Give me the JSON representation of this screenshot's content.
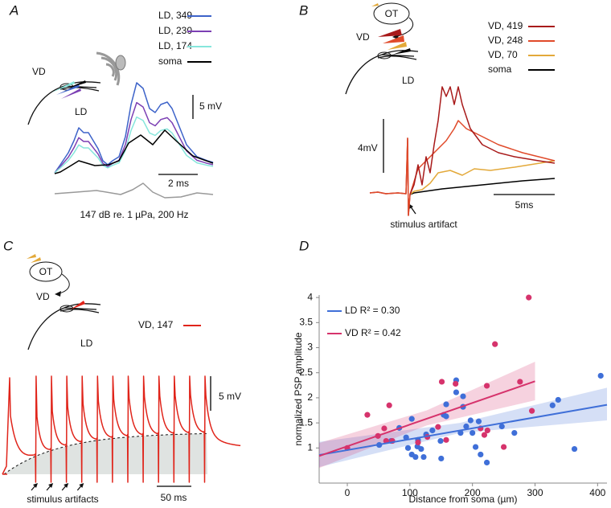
{
  "panel_a": {
    "label": "A",
    "legend": [
      {
        "name": "LD, 349",
        "color": "#3d63c9"
      },
      {
        "name": "LD, 230",
        "color": "#7b3fb3"
      },
      {
        "name": "LD, 174",
        "color": "#86e6dc"
      },
      {
        "name": "soma",
        "color": "#000000"
      }
    ],
    "neuron_labels": [
      "VD",
      "LD"
    ],
    "scale_y": "5 mV",
    "scale_x": "2 ms",
    "stimulus": "147 dB re. 1 µPa, 200 Hz"
  },
  "panel_b": {
    "label": "B",
    "region": "OT",
    "legend": [
      {
        "name": "VD, 419",
        "color": "#a81a1a"
      },
      {
        "name": "VD, 248",
        "color": "#e04a2a"
      },
      {
        "name": "VD, 70",
        "color": "#e3a93a"
      },
      {
        "name": "soma",
        "color": "#000000"
      }
    ],
    "neuron_labels": [
      "VD",
      "LD"
    ],
    "scale_y": "4mV",
    "scale_x": "5ms",
    "annotation": "stimulus artifact"
  },
  "panel_c": {
    "label": "C",
    "region": "OT",
    "legend": [
      {
        "name": "VD, 147",
        "color": "#e0241a"
      }
    ],
    "neuron_labels": [
      "VD",
      "LD"
    ],
    "scale_y": "5 mV",
    "scale_x": "50 ms",
    "annotation": "stimulus artifacts"
  },
  "chart_data": {
    "type": "scatter",
    "panel_label": "D",
    "xlabel": "Distance from soma (µm)",
    "ylabel": "normalized PSP amplitude",
    "xlim": [
      -45,
      415
    ],
    "ylim": [
      0.3,
      4.05
    ],
    "xticks": [
      0,
      100,
      200,
      300,
      400
    ],
    "yticks": [
      1,
      1.5,
      2,
      2.5,
      3,
      3.5,
      4
    ],
    "legend_position": "upper left",
    "series": [
      {
        "name": "LD R² = 0.30",
        "color": "#3f6fd8",
        "x": [
          70,
          83,
          94,
          97,
          103,
          109,
          112,
          113,
          118,
          122,
          103,
          126,
          136,
          149,
          150,
          154,
          158,
          158,
          174,
          185,
          190,
          197,
          200,
          205,
          210,
          213,
          223,
          181,
          267,
          328,
          337,
          363,
          405,
          174,
          51,
          185,
          247
        ],
        "values": [
          1.14,
          1.4,
          1.21,
          1.0,
          0.87,
          0.82,
          1.03,
          1.16,
          0.98,
          0.82,
          1.58,
          1.27,
          1.35,
          1.14,
          0.79,
          1.66,
          1.63,
          1.87,
          2.11,
          1.82,
          1.43,
          1.55,
          1.3,
          1.02,
          1.53,
          0.87,
          0.71,
          1.3,
          1.3,
          1.85,
          1.96,
          0.98,
          2.44,
          2.35,
          1.06,
          2.03,
          1.43
        ],
        "fit": {
          "x": [
            -45,
            415
          ],
          "y": [
            0.86,
            1.86
          ]
        },
        "band": {
          "x": [
            -45,
            180,
            415
          ],
          "lower": [
            0.62,
            1.3,
            1.55
          ],
          "upper": [
            1.12,
            1.5,
            2.2
          ]
        }
      },
      {
        "name": "VD R² = 0.42",
        "color": "#d6336c",
        "x": [
          0,
          32,
          49,
          59,
          62,
          67,
          72,
          113,
          128,
          145,
          151,
          158,
          173,
          213,
          219,
          224,
          236,
          250,
          276,
          295,
          290,
          223
        ],
        "values": [
          1.0,
          1.66,
          1.24,
          1.39,
          1.14,
          1.85,
          1.14,
          1.11,
          1.22,
          1.42,
          2.32,
          1.16,
          2.28,
          1.39,
          1.26,
          1.35,
          3.07,
          1.02,
          2.32,
          1.74,
          4.0,
          2.24
        ],
        "fit": {
          "x": [
            -45,
            300
          ],
          "y": [
            0.84,
            2.33
          ]
        },
        "band": {
          "x": [
            -45,
            127,
            300
          ],
          "lower": [
            0.6,
            1.45,
            1.95
          ],
          "upper": [
            1.1,
            1.75,
            2.72
          ]
        }
      }
    ]
  }
}
